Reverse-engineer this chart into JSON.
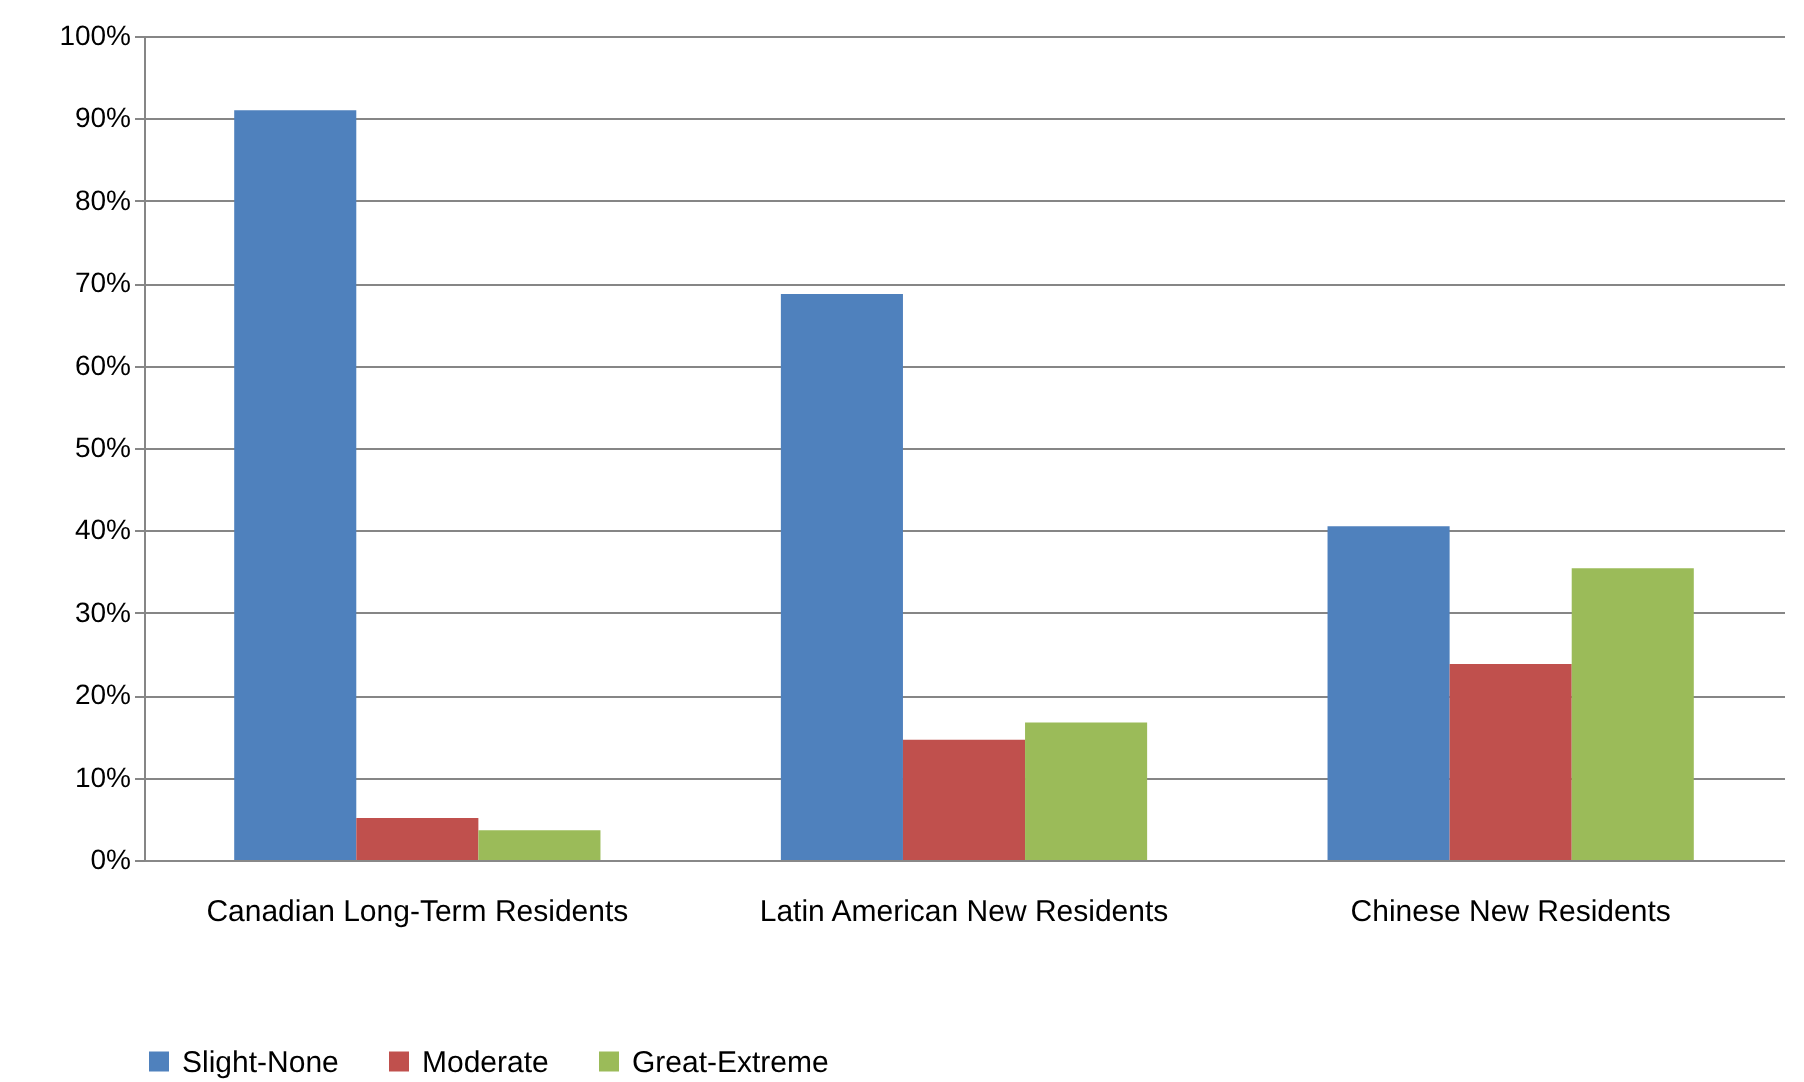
{
  "chart_data": {
    "type": "bar",
    "categories": [
      "Canadian Long-Term Residents",
      "Latin American New Residents",
      "Chinese New Residents"
    ],
    "series": [
      {
        "name": "Slight-None",
        "color": "#4f81bd",
        "values": [
          91.0,
          68.7,
          40.5
        ]
      },
      {
        "name": "Moderate",
        "color": "#c0504d",
        "values": [
          5.1,
          14.6,
          23.8
        ]
      },
      {
        "name": "Great-Extreme",
        "color": "#9bbb59",
        "values": [
          3.6,
          16.7,
          35.4
        ]
      }
    ],
    "ylim": [
      0,
      100
    ],
    "yticks": [
      {
        "value": 0,
        "label": "0%"
      },
      {
        "value": 10,
        "label": "10%"
      },
      {
        "value": 20,
        "label": "20%"
      },
      {
        "value": 30,
        "label": "30%"
      },
      {
        "value": 40,
        "label": "40%"
      },
      {
        "value": 50,
        "label": "50%"
      },
      {
        "value": 60,
        "label": "60%"
      },
      {
        "value": 70,
        "label": "70%"
      },
      {
        "value": 80,
        "label": "80%"
      },
      {
        "value": 90,
        "label": "90%"
      },
      {
        "value": 100,
        "label": "100%"
      }
    ],
    "grid": "y",
    "legend": "bottom"
  }
}
